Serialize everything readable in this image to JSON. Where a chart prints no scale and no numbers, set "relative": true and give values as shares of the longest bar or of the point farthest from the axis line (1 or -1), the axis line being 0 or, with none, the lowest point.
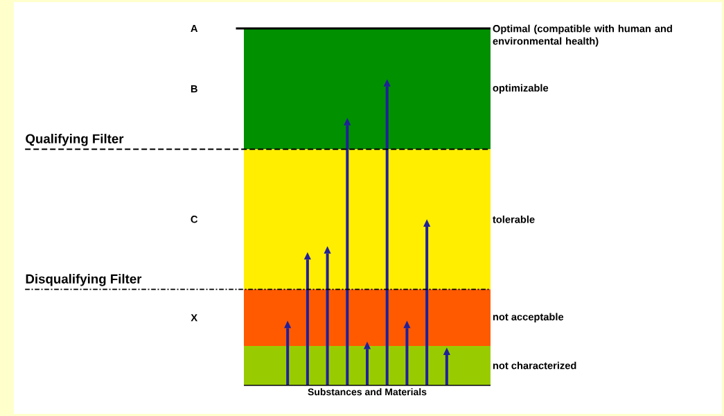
{
  "chart_data": {
    "type": "bar",
    "relative": true,
    "categories": [
      null,
      null,
      null,
      null,
      null,
      null,
      null,
      null,
      null
    ],
    "values": [
      0.19,
      0.42,
      0.44,
      0.87,
      0.12,
      1,
      0.19,
      0.53,
      0.1
    ],
    "color": "#20209a",
    "xlabel": "Substances and Materials",
    "bands": [
      {
        "axis": "y",
        "from": 0.79,
        "to": 1.195,
        "label": "optimizable",
        "color": "#009000"
      },
      {
        "axis": "y",
        "from": 0.32,
        "to": 0.79,
        "label": "tolerable",
        "color": "#ffee00"
      },
      {
        "axis": "y",
        "from": 0.13,
        "to": 0.32,
        "label": "not acceptable",
        "color": "#ff5a00"
      },
      {
        "axis": "y",
        "from": 0,
        "to": 0.13,
        "label": "not characterized",
        "color": "#99cc00"
      }
    ],
    "ref_lines": [
      {
        "axis": "y",
        "value": 1.195,
        "label": "Optimal (compatible with human and environmental health)",
        "line_style": "solid",
        "color": "#000000"
      },
      {
        "axis": "y",
        "value": 0.79,
        "label": "Qualifying Filter",
        "line_style": "dashed",
        "color": "#000000"
      },
      {
        "axis": "y",
        "value": 0.32,
        "label": "Disqualifying Filter",
        "line_style": "dashdot",
        "color": "#000000"
      }
    ],
    "annotations": [
      "A",
      "B",
      "C",
      "X"
    ]
  }
}
